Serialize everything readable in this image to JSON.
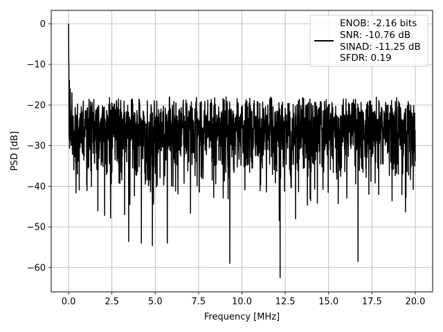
{
  "chart_data": {
    "type": "line",
    "xlabel": "Frequency [MHz]",
    "ylabel": "PSD [dB]",
    "xlim": [
      -1.0,
      21.0
    ],
    "ylim": [
      -66,
      3.3
    ],
    "x_ticks": [
      0.0,
      2.5,
      5.0,
      7.5,
      10.0,
      12.5,
      15.0,
      17.5,
      20.0
    ],
    "x_tick_labels": [
      "0.0",
      "2.5",
      "5.0",
      "7.5",
      "10.0",
      "12.5",
      "15.0",
      "17.5",
      "20.0"
    ],
    "y_ticks": [
      0,
      -10,
      -20,
      -30,
      -40,
      -50,
      -60
    ],
    "y_tick_labels": [
      "0",
      "−10",
      "−20",
      "−30",
      "−40",
      "−50",
      "−60"
    ],
    "grid": true,
    "legend_position": "top-right",
    "legend_entries": [
      "ENOB: -2.16 bits",
      "SNR: -10.76 dB",
      "SINAD: -11.25 dB",
      "SFDR: 0.19"
    ],
    "series": [
      {
        "color": "#000000",
        "description": "noisy power spectral density, approx. 2048 bins from 0 to 20 MHz",
        "x_start": 0.0,
        "x_end": 20.0,
        "points": 2048,
        "noise_floor_db": -29,
        "peaks": [
          {
            "x": 0.0,
            "y": 0.0
          },
          {
            "x": 0.01,
            "y": -8.0
          },
          {
            "x": 0.02,
            "y": -11.0
          },
          {
            "x": 0.05,
            "y": -14.0
          },
          {
            "x": 0.1,
            "y": -16.0
          },
          {
            "x": 0.2,
            "y": -17.0
          }
        ],
        "notable_minima": [
          {
            "x": 4.2,
            "y": -54.0
          },
          {
            "x": 5.7,
            "y": -54.0
          },
          {
            "x": 9.3,
            "y": -59.0
          },
          {
            "x": 12.2,
            "y": -62.5
          },
          {
            "x": 16.7,
            "y": -58.5
          }
        ]
      }
    ]
  }
}
